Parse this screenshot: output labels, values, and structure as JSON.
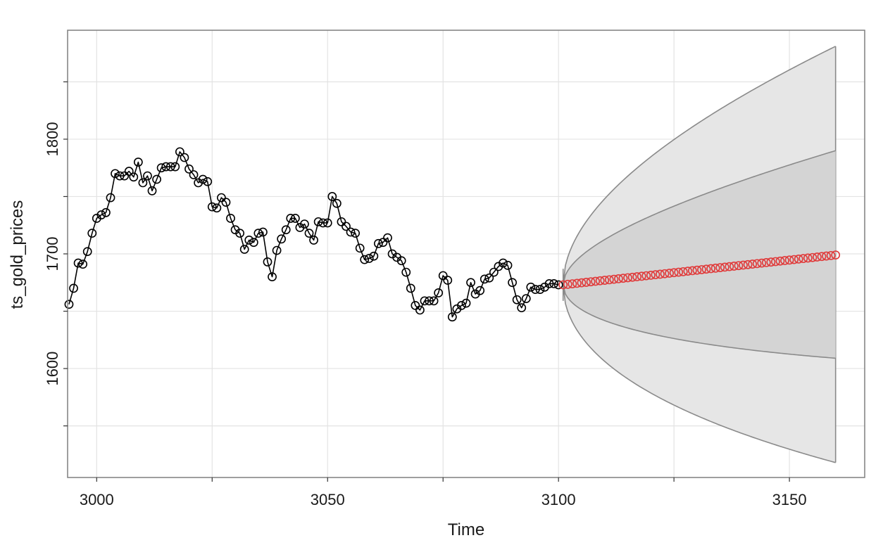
{
  "chart_data": {
    "type": "line",
    "xlabel": "Time",
    "ylabel": "ts_gold_prices",
    "xlim": [
      2993.7,
      3166.3
    ],
    "ylim": [
      1505,
      1895
    ],
    "x_ticks": [
      3000,
      3050,
      3100,
      3150
    ],
    "y_ticks": [
      1600,
      1700,
      1800
    ],
    "grid": true,
    "colors": {
      "observed": "#000000",
      "forecast": "#e03a3a",
      "band_80": "#d4d4d4",
      "band_95": "#e6e6e6",
      "band_edge": "#8a8a8a",
      "grid": "#e3e3e3",
      "frame": "#7f7f7f"
    },
    "observed": {
      "x_start": 2994,
      "values": [
        1656,
        1670,
        1692,
        1691,
        1702,
        1718,
        1731,
        1734,
        1736,
        1749,
        1770,
        1768,
        1768,
        1772,
        1767,
        1780,
        1762,
        1768,
        1755,
        1765,
        1775,
        1776,
        1776,
        1776,
        1789,
        1784,
        1774,
        1769,
        1762,
        1765,
        1763,
        1741,
        1740,
        1749,
        1745,
        1731,
        1721,
        1718,
        1704,
        1712,
        1710,
        1718,
        1719,
        1693,
        1680,
        1703,
        1713,
        1721,
        1731,
        1731,
        1723,
        1726,
        1718,
        1712,
        1728,
        1727,
        1727,
        1750,
        1744,
        1728,
        1724,
        1719,
        1718,
        1705,
        1695,
        1696,
        1698,
        1709,
        1710,
        1714,
        1700,
        1697,
        1694,
        1684,
        1670,
        1655,
        1651,
        1659,
        1659,
        1659,
        1666,
        1681,
        1677,
        1645,
        1652,
        1655,
        1657,
        1675,
        1665,
        1668,
        1678,
        1679,
        1684,
        1689,
        1692,
        1690,
        1675,
        1660,
        1653,
        1661,
        1671,
        1669,
        1669,
        1671,
        1674,
        1674,
        1673
      ]
    },
    "forecast": {
      "x_start": 3101,
      "x_end": 3160,
      "y_start": 1673,
      "y_end": 1699,
      "lower_80_end": 1609,
      "upper_80_end": 1790,
      "lower_95_end": 1518,
      "upper_95_end": 1881
    }
  }
}
